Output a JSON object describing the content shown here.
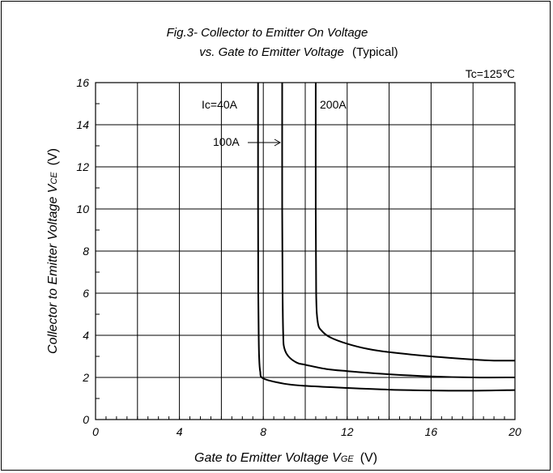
{
  "chart_data": {
    "type": "line",
    "title_line1": "Fig.3-  Collector to Emitter On Voltage",
    "title_line2_italic": "vs. Gate to Emitter Voltage",
    "title_line2_plain": "(Typical)",
    "condition_label": "Tc=125℃",
    "xlabel": {
      "text": "Gate to Emitter Voltage V",
      "sub": "GE",
      "unit": "(V)"
    },
    "ylabel": {
      "text": "Collector to Emitter Voltage V",
      "sub": "CE",
      "unit": "(V)"
    },
    "xlim": [
      0,
      20
    ],
    "ylim": [
      0,
      16
    ],
    "x_ticks": [
      "0",
      "4",
      "8",
      "12",
      "16",
      "20"
    ],
    "y_ticks": [
      "0",
      "2",
      "4",
      "6",
      "8",
      "10",
      "12",
      "14",
      "16"
    ],
    "grid": true,
    "series_labels": {
      "ic40": "Ic=40A",
      "ic100": "100A",
      "ic200": "200A"
    },
    "series": [
      {
        "name": "40A",
        "points": [
          [
            7.75,
            16
          ],
          [
            7.75,
            10
          ],
          [
            7.76,
            6
          ],
          [
            7.78,
            4
          ],
          [
            7.8,
            3
          ],
          [
            7.85,
            2.3
          ],
          [
            8.0,
            1.95
          ],
          [
            9,
            1.7
          ],
          [
            10,
            1.6
          ],
          [
            12,
            1.5
          ],
          [
            14,
            1.42
          ],
          [
            16,
            1.38
          ],
          [
            18,
            1.37
          ],
          [
            20,
            1.4
          ]
        ]
      },
      {
        "name": "100A",
        "points": [
          [
            8.9,
            16
          ],
          [
            8.9,
            10
          ],
          [
            8.92,
            6
          ],
          [
            8.95,
            4
          ],
          [
            9.0,
            3.4
          ],
          [
            9.2,
            3.0
          ],
          [
            9.6,
            2.7
          ],
          [
            10,
            2.6
          ],
          [
            11,
            2.4
          ],
          [
            12,
            2.3
          ],
          [
            14,
            2.15
          ],
          [
            16,
            2.05
          ],
          [
            18,
            2.0
          ],
          [
            20,
            2.0
          ]
        ]
      },
      {
        "name": "200A",
        "points": [
          [
            10.5,
            16
          ],
          [
            10.5,
            10
          ],
          [
            10.52,
            6
          ],
          [
            10.6,
            4.6
          ],
          [
            10.8,
            4.2
          ],
          [
            11.2,
            3.9
          ],
          [
            12,
            3.6
          ],
          [
            13,
            3.35
          ],
          [
            14,
            3.2
          ],
          [
            16,
            3.0
          ],
          [
            18,
            2.85
          ],
          [
            19,
            2.8
          ],
          [
            20,
            2.8
          ]
        ]
      }
    ],
    "annotation": {
      "from_label": "100A",
      "arrow": true
    }
  }
}
